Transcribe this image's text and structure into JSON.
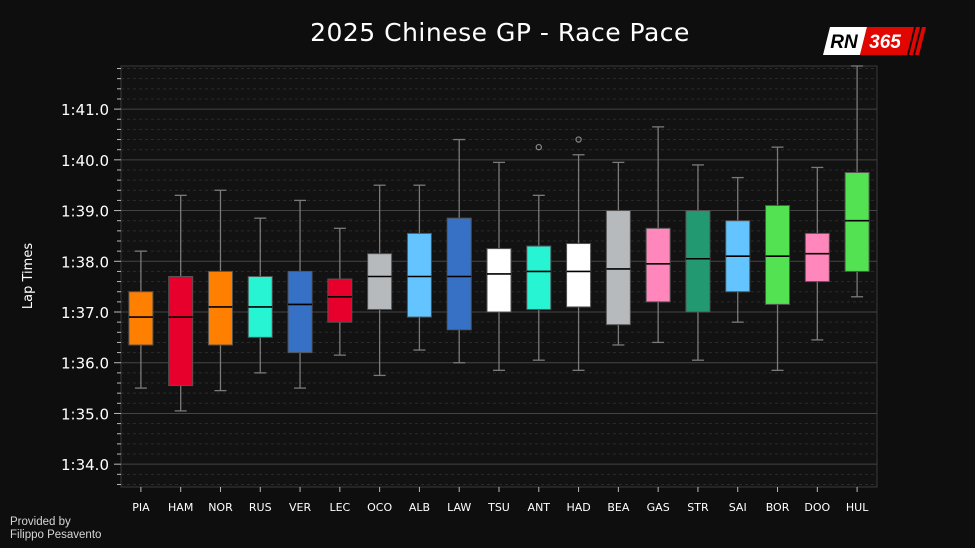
{
  "header": {
    "title": "2025 Chinese GP - Race Pace",
    "logo_text_left": "RN",
    "logo_text_right": "365"
  },
  "footer": {
    "credit_line1": "Provided by",
    "credit_line2": "Filippo Pesavento"
  },
  "colors": {
    "background": "#0e0e0e",
    "plot_background": "#121212",
    "grid_major": "#444444",
    "grid_minor": "#2b2b2b",
    "logo_red": "#e10600"
  },
  "chart_data": {
    "type": "box",
    "title": "2025 Chinese GP - Race Pace",
    "ylabel": "Lap Times",
    "xlabel": "",
    "y_unit": "seconds",
    "ylim": [
      93.55,
      101.85
    ],
    "yticks": [
      94,
      95,
      96,
      97,
      98,
      99,
      100,
      101
    ],
    "ytick_labels": [
      "1:34.0",
      "1:35.0",
      "1:36.0",
      "1:37.0",
      "1:38.0",
      "1:39.0",
      "1:40.0",
      "1:41.0"
    ],
    "grid": true,
    "legend": false,
    "categories": [
      "PIA",
      "HAM",
      "NOR",
      "RUS",
      "VER",
      "LEC",
      "OCO",
      "ALB",
      "LAW",
      "TSU",
      "ANT",
      "HAD",
      "BEA",
      "GAS",
      "STR",
      "SAI",
      "BOR",
      "DOO",
      "HUL"
    ],
    "boxes": [
      {
        "driver": "PIA",
        "color": "#ff8000",
        "whisker_low": 95.5,
        "q1": 96.35,
        "median": 96.9,
        "q3": 97.4,
        "whisker_high": 98.2,
        "outliers": []
      },
      {
        "driver": "HAM",
        "color": "#e8002d",
        "whisker_low": 95.05,
        "q1": 95.55,
        "median": 96.9,
        "q3": 97.7,
        "whisker_high": 99.3,
        "outliers": []
      },
      {
        "driver": "NOR",
        "color": "#ff8000",
        "whisker_low": 95.45,
        "q1": 96.35,
        "median": 97.1,
        "q3": 97.8,
        "whisker_high": 99.4,
        "outliers": []
      },
      {
        "driver": "RUS",
        "color": "#27f4d2",
        "whisker_low": 95.8,
        "q1": 96.5,
        "median": 97.1,
        "q3": 97.7,
        "whisker_high": 98.85,
        "outliers": []
      },
      {
        "driver": "VER",
        "color": "#3671c6",
        "whisker_low": 95.5,
        "q1": 96.2,
        "median": 97.15,
        "q3": 97.8,
        "whisker_high": 99.2,
        "outliers": []
      },
      {
        "driver": "LEC",
        "color": "#e8002d",
        "whisker_low": 96.15,
        "q1": 96.8,
        "median": 97.3,
        "q3": 97.65,
        "whisker_high": 98.65,
        "outliers": []
      },
      {
        "driver": "OCO",
        "color": "#b6babd",
        "whisker_low": 95.75,
        "q1": 97.05,
        "median": 97.7,
        "q3": 98.15,
        "whisker_high": 99.5,
        "outliers": []
      },
      {
        "driver": "ALB",
        "color": "#64c4ff",
        "whisker_low": 96.25,
        "q1": 96.9,
        "median": 97.7,
        "q3": 98.55,
        "whisker_high": 99.5,
        "outliers": []
      },
      {
        "driver": "LAW",
        "color": "#3671c6",
        "whisker_low": 96.0,
        "q1": 96.65,
        "median": 97.7,
        "q3": 98.85,
        "whisker_high": 100.4,
        "outliers": []
      },
      {
        "driver": "TSU",
        "color": "#ffffff",
        "whisker_low": 95.85,
        "q1": 97.0,
        "median": 97.75,
        "q3": 98.25,
        "whisker_high": 99.95,
        "outliers": []
      },
      {
        "driver": "ANT",
        "color": "#27f4d2",
        "whisker_low": 96.05,
        "q1": 97.05,
        "median": 97.8,
        "q3": 98.3,
        "whisker_high": 99.3,
        "outliers": [
          100.25
        ]
      },
      {
        "driver": "HAD",
        "color": "#ffffff",
        "whisker_low": 95.85,
        "q1": 97.1,
        "median": 97.8,
        "q3": 98.35,
        "whisker_high": 100.1,
        "outliers": [
          100.4
        ]
      },
      {
        "driver": "BEA",
        "color": "#b6babd",
        "whisker_low": 96.35,
        "q1": 96.75,
        "median": 97.85,
        "q3": 99.0,
        "whisker_high": 99.95,
        "outliers": []
      },
      {
        "driver": "GAS",
        "color": "#ff87bc",
        "whisker_low": 96.4,
        "q1": 97.2,
        "median": 97.95,
        "q3": 98.65,
        "whisker_high": 100.65,
        "outliers": []
      },
      {
        "driver": "STR",
        "color": "#229971",
        "whisker_low": 96.05,
        "q1": 97.0,
        "median": 98.05,
        "q3": 99.0,
        "whisker_high": 99.9,
        "outliers": []
      },
      {
        "driver": "SAI",
        "color": "#64c4ff",
        "whisker_low": 96.8,
        "q1": 97.4,
        "median": 98.1,
        "q3": 98.8,
        "whisker_high": 99.65,
        "outliers": []
      },
      {
        "driver": "BOR",
        "color": "#52e252",
        "whisker_low": 95.85,
        "q1": 97.15,
        "median": 98.1,
        "q3": 99.1,
        "whisker_high": 100.25,
        "outliers": []
      },
      {
        "driver": "DOO",
        "color": "#ff87bc",
        "whisker_low": 96.45,
        "q1": 97.6,
        "median": 98.15,
        "q3": 98.55,
        "whisker_high": 99.85,
        "outliers": []
      },
      {
        "driver": "HUL",
        "color": "#52e252",
        "whisker_low": 97.3,
        "q1": 97.8,
        "median": 98.8,
        "q3": 99.75,
        "whisker_high": 101.85,
        "outliers": []
      }
    ]
  }
}
